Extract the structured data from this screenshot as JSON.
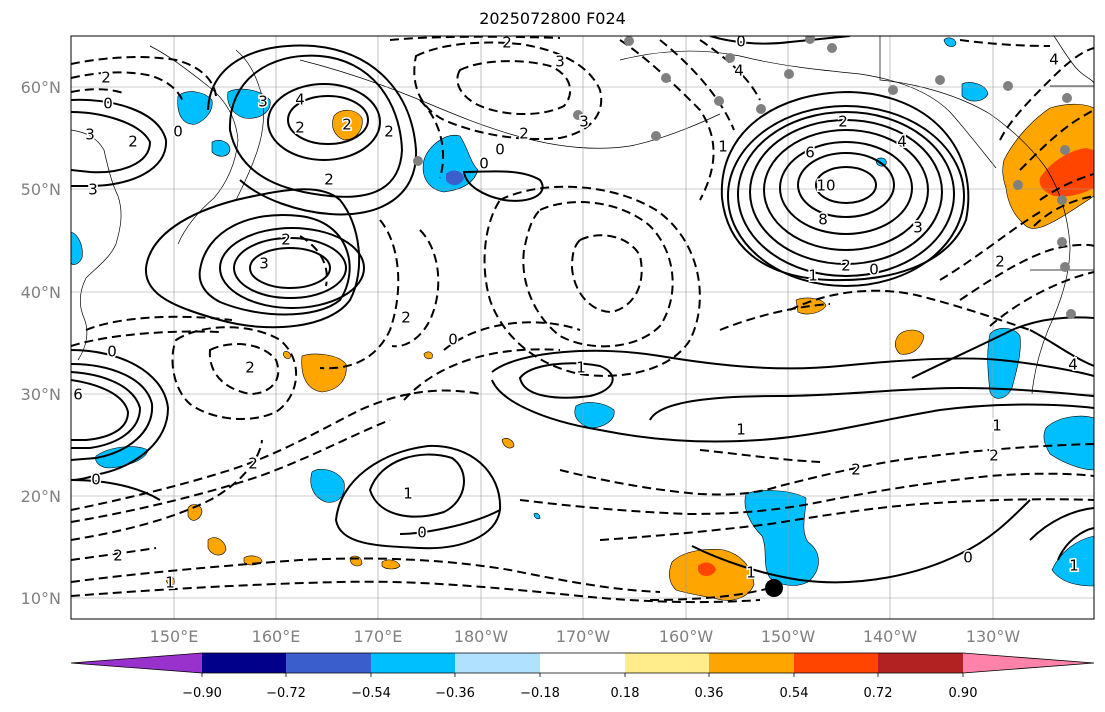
{
  "title": "2025072800 F024",
  "map": {
    "lat_labels": [
      "60°N",
      "50°N",
      "40°N",
      "30°N",
      "20°N",
      "10°N"
    ],
    "lon_labels": [
      "150°E",
      "160°E",
      "170°E",
      "180°W",
      "170°W",
      "160°W",
      "150°W",
      "140°W",
      "130°W"
    ]
  },
  "colorbar": {
    "tick_labels": [
      "−0.90",
      "−0.72",
      "−0.54",
      "−0.36",
      "−0.18",
      "0.18",
      "0.36",
      "0.54",
      "0.72",
      "0.90"
    ],
    "colors": [
      "#9932cc",
      "#00008b",
      "#3a5fcd",
      "#00bfff",
      "#b0e2ff",
      "#ffffff",
      "#ffec8b",
      "#ffa500",
      "#ff4500",
      "#b22222",
      "#ff82ab"
    ]
  },
  "contour_labels": [
    {
      "text": "2"
    },
    {
      "text": "0"
    },
    {
      "text": "3"
    },
    {
      "text": "2"
    },
    {
      "text": "3"
    },
    {
      "text": "3"
    },
    {
      "text": "2"
    },
    {
      "text": "2"
    },
    {
      "text": "4"
    },
    {
      "text": "2"
    },
    {
      "text": "3"
    },
    {
      "text": "2"
    },
    {
      "text": "0"
    },
    {
      "text": "2"
    },
    {
      "text": "3"
    },
    {
      "text": "0"
    },
    {
      "text": "0"
    },
    {
      "text": "4"
    },
    {
      "text": "1"
    },
    {
      "text": "6"
    },
    {
      "text": "10"
    },
    {
      "text": "8"
    },
    {
      "text": "2"
    },
    {
      "text": "4"
    },
    {
      "text": "2"
    },
    {
      "text": "0"
    },
    {
      "text": "1"
    },
    {
      "text": "3"
    },
    {
      "text": "2"
    },
    {
      "text": "2"
    },
    {
      "text": "3"
    },
    {
      "text": "2"
    },
    {
      "text": "0"
    },
    {
      "text": "2"
    },
    {
      "text": "1"
    },
    {
      "text": "1"
    },
    {
      "text": "1"
    },
    {
      "text": "2"
    },
    {
      "text": "1"
    },
    {
      "text": "2"
    },
    {
      "text": "0"
    },
    {
      "text": "0"
    },
    {
      "text": "2"
    },
    {
      "text": "1"
    },
    {
      "text": "0"
    },
    {
      "text": "2"
    },
    {
      "text": "0"
    },
    {
      "text": "1"
    },
    {
      "text": "2"
    },
    {
      "text": "4"
    },
    {
      "text": "6"
    },
    {
      "text": "0"
    },
    {
      "text": "1"
    },
    {
      "text": "4"
    }
  ]
}
